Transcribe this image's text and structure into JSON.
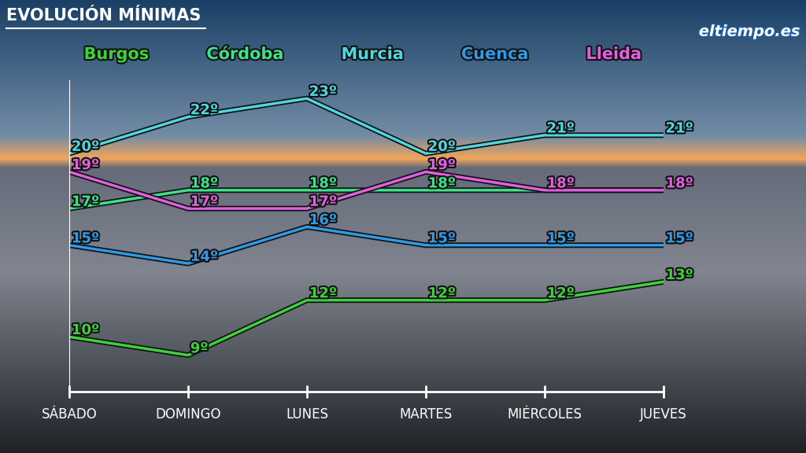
{
  "chart_data": {
    "type": "line",
    "title": "EVOLUCIÓN MÍNIMAS",
    "source": "eltiempo.es",
    "categories": [
      "SÁBADO",
      "DOMINGO",
      "LUNES",
      "MARTES",
      "MIÉRCOLES",
      "JUEVES"
    ],
    "series": [
      {
        "name": "Burgos",
        "color": "#3fd13b",
        "values": [
          10,
          9,
          12,
          12,
          12,
          13
        ],
        "value_labels": [
          "10º",
          "9º",
          "12º",
          "12º",
          "12º",
          "13º"
        ]
      },
      {
        "name": "Córdoba",
        "color": "#3ee08a",
        "values": [
          17,
          18,
          18,
          18,
          18,
          18
        ],
        "value_labels": [
          "17º",
          "18º",
          "18º",
          "18º",
          null,
          null
        ]
      },
      {
        "name": "Murcia",
        "color": "#4fd6e0",
        "values": [
          20,
          22,
          23,
          20,
          21,
          21
        ],
        "value_labels": [
          "20º",
          "22º",
          "23º",
          "20º",
          "21º",
          "21º"
        ]
      },
      {
        "name": "Cuenca",
        "color": "#2f9be8",
        "values": [
          15,
          14,
          16,
          15,
          15,
          15
        ],
        "value_labels": [
          "15º",
          "14º",
          "16º",
          "15º",
          "15º",
          "15º"
        ]
      },
      {
        "name": "Lleida",
        "color": "#e060e0",
        "values": [
          19,
          17,
          17,
          19,
          18,
          18
        ],
        "value_labels": [
          "19º",
          "17º",
          "17º",
          "19º",
          "18º",
          "18º"
        ]
      }
    ],
    "ylim": [
      7,
      24
    ],
    "yticks": [],
    "tick_labels": "x",
    "data_labels": true,
    "legend": "upper center",
    "grid": false
  }
}
